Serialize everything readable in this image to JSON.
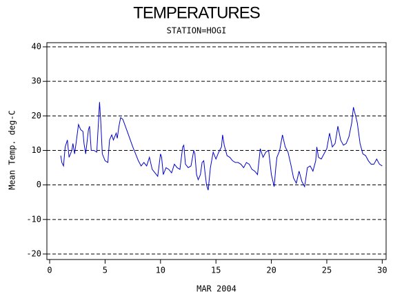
{
  "chart_data": {
    "type": "line",
    "title": "TEMPERATURES",
    "subtitle": "STATION=HOGI",
    "xlabel": "MAR 2004",
    "ylabel": "Mean Temp. deg-C",
    "color": "#0000cc",
    "grid": true,
    "xlim": [
      -0.25,
      30.35
    ],
    "xticks": [
      0,
      5,
      10,
      15,
      20,
      25,
      30
    ],
    "ylim": [
      -21.6,
      41.2
    ],
    "yticks": [
      -20,
      -10,
      0,
      10,
      20,
      30,
      40
    ],
    "x": [
      1.0,
      1.1,
      1.25,
      1.4,
      1.6,
      1.75,
      2.0,
      2.1,
      2.25,
      2.4,
      2.6,
      2.8,
      3.0,
      3.1,
      3.25,
      3.5,
      3.6,
      3.75,
      4.0,
      4.25,
      4.4,
      4.5,
      4.6,
      4.75,
      5.0,
      5.25,
      5.4,
      5.6,
      5.75,
      6.0,
      6.1,
      6.25,
      6.4,
      6.6,
      7.0,
      7.5,
      8.0,
      8.25,
      8.5,
      8.75,
      9.0,
      9.25,
      9.5,
      9.75,
      10.0,
      10.1,
      10.25,
      10.5,
      10.75,
      11.0,
      11.25,
      11.5,
      11.75,
      12.0,
      12.1,
      12.25,
      12.5,
      12.75,
      13.0,
      13.1,
      13.25,
      13.4,
      13.6,
      13.75,
      13.9,
      14.0,
      14.15,
      14.3,
      14.5,
      14.75,
      15.0,
      15.25,
      15.5,
      15.6,
      15.75,
      16.0,
      16.25,
      16.5,
      16.75,
      17.0,
      17.25,
      17.5,
      17.75,
      18.0,
      18.25,
      18.5,
      18.75,
      19.0,
      19.25,
      19.5,
      19.75,
      20.0,
      20.25,
      20.4,
      20.5,
      20.75,
      21.0,
      21.25,
      21.5,
      21.75,
      22.0,
      22.25,
      22.5,
      22.75,
      23.0,
      23.25,
      23.5,
      23.75,
      24.0,
      24.1,
      24.25,
      24.5,
      24.75,
      25.0,
      25.25,
      25.5,
      25.75,
      26.0,
      26.25,
      26.5,
      26.75,
      27.0,
      27.25,
      27.4,
      27.6,
      27.75,
      28.0,
      28.25,
      28.5,
      28.75,
      29.0,
      29.25,
      29.5,
      29.75,
      30.0
    ],
    "values": [
      8.5,
      6.5,
      5.5,
      11,
      13,
      8,
      10,
      12,
      9,
      12.5,
      17.5,
      16,
      15.5,
      12,
      9,
      16,
      17,
      10,
      10,
      9.5,
      18,
      24,
      19,
      9,
      7,
      6.5,
      13,
      14.5,
      13,
      15,
      13.5,
      17,
      19.5,
      19,
      15.5,
      11,
      7,
      5.5,
      6.5,
      5.5,
      8,
      4.5,
      3.5,
      2.5,
      9,
      8,
      3,
      5,
      4.5,
      3.5,
      6,
      5,
      4.5,
      11,
      11.5,
      6,
      5,
      5.5,
      10,
      9,
      3,
      1.5,
      3,
      6.5,
      7,
      4,
      0,
      -1.5,
      5,
      9.5,
      7.5,
      9.5,
      11,
      14.5,
      11.5,
      8.5,
      8,
      7,
      6.5,
      6.5,
      6,
      5,
      6.5,
      6,
      4.5,
      4,
      3,
      10.5,
      8,
      9.5,
      10,
      3,
      -0.5,
      5,
      8,
      10,
      14.5,
      11,
      9.5,
      6,
      2,
      0.5,
      4,
      1,
      -0.5,
      5,
      5.5,
      4,
      7,
      11,
      8,
      7.5,
      9,
      10.5,
      15,
      11,
      12,
      17,
      13,
      11.5,
      12,
      14,
      18,
      22.5,
      20,
      18,
      12,
      9,
      8.5,
      7,
      6,
      6,
      7.5,
      6,
      5.5
    ]
  }
}
